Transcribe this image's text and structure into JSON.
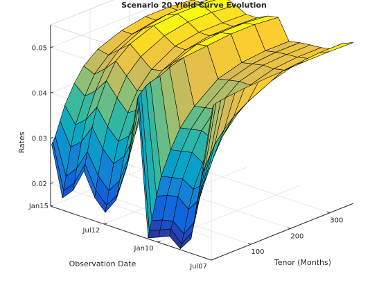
{
  "chart_data": {
    "type": "surface",
    "title": "Scenario 20 Yield Curve Evolution",
    "zlabel": "Rates",
    "xlabel": "Tenor (Months)",
    "ylabel": "Observation Date",
    "x_ticks": [
      "100",
      "200",
      "300"
    ],
    "y_ticks": [
      "Jul07",
      "Jan10",
      "Jul12",
      "Jan15"
    ],
    "z_ticks": [
      "0.02",
      "0.03",
      "0.04",
      "0.05"
    ],
    "xlim": [
      0,
      360
    ],
    "ylim": [
      "Jul07",
      "Jan15"
    ],
    "zlim": [
      0.015,
      0.055
    ],
    "colormap": "parula",
    "tenors_months": [
      3,
      6,
      12,
      24,
      36,
      60,
      84,
      120,
      180,
      240,
      300,
      360
    ],
    "dates": [
      "Jul07",
      "Jan08",
      "Jul08",
      "Jan09",
      "Jul09",
      "Jan10",
      "Jul10",
      "Jan11",
      "Jul11",
      "Jan12",
      "Jul12",
      "Jan13",
      "Jul13",
      "Jan14",
      "Jul14",
      "Jan15"
    ],
    "rates": [
      [
        0.0485,
        0.049,
        0.0492,
        0.0494,
        0.0496,
        0.0498,
        0.05,
        0.0502,
        0.0504,
        0.0506,
        0.0506,
        0.0505
      ],
      [
        0.033,
        0.0335,
        0.0345,
        0.0365,
        0.0385,
        0.041,
        0.043,
        0.045,
        0.0475,
        0.049,
        0.0495,
        0.0495
      ],
      [
        0.018,
        0.0195,
        0.0215,
        0.026,
        0.029,
        0.034,
        0.038,
        0.0415,
        0.0455,
        0.047,
        0.0475,
        0.0475
      ],
      [
        0.015,
        0.016,
        0.018,
        0.023,
        0.027,
        0.032,
        0.0365,
        0.0405,
        0.045,
        0.0465,
        0.047,
        0.047
      ],
      [
        0.017,
        0.0185,
        0.02,
        0.025,
        0.0285,
        0.0335,
        0.0375,
        0.041,
        0.045,
        0.0465,
        0.0468,
        0.0468
      ],
      [
        0.016,
        0.0175,
        0.0195,
        0.0245,
        0.028,
        0.033,
        0.037,
        0.0405,
        0.0445,
        0.046,
        0.0465,
        0.0465
      ],
      [
        0.015,
        0.0165,
        0.0185,
        0.0235,
        0.0275,
        0.0325,
        0.0365,
        0.04,
        0.044,
        0.0455,
        0.046,
        0.046
      ],
      [
        0.045,
        0.0455,
        0.046,
        0.047,
        0.0475,
        0.048,
        0.049,
        0.05,
        0.0505,
        0.051,
        0.051,
        0.0505
      ],
      [
        0.029,
        0.03,
        0.032,
        0.0355,
        0.0385,
        0.0425,
        0.0455,
        0.048,
        0.05,
        0.0505,
        0.0505,
        0.05
      ],
      [
        0.021,
        0.022,
        0.025,
        0.03,
        0.034,
        0.039,
        0.0425,
        0.0455,
        0.048,
        0.049,
        0.049,
        0.0488
      ],
      [
        0.0175,
        0.019,
        0.022,
        0.0275,
        0.032,
        0.0375,
        0.0415,
        0.045,
        0.048,
        0.049,
        0.049,
        0.0488
      ],
      [
        0.02,
        0.0215,
        0.0245,
        0.03,
        0.0345,
        0.04,
        0.044,
        0.047,
        0.0495,
        0.0505,
        0.0505,
        0.05
      ],
      [
        0.025,
        0.0265,
        0.029,
        0.034,
        0.038,
        0.043,
        0.0465,
        0.049,
        0.051,
        0.0515,
        0.0515,
        0.051
      ],
      [
        0.02,
        0.0215,
        0.0245,
        0.03,
        0.0345,
        0.04,
        0.044,
        0.047,
        0.0495,
        0.0505,
        0.0505,
        0.05
      ],
      [
        0.0175,
        0.019,
        0.022,
        0.028,
        0.0325,
        0.038,
        0.042,
        0.045,
        0.0475,
        0.0485,
        0.0485,
        0.048
      ],
      [
        0.0285,
        0.029,
        0.03,
        0.033,
        0.036,
        0.04,
        0.043,
        0.0455,
        0.0475,
        0.0485,
        0.0485,
        0.048
      ]
    ]
  }
}
